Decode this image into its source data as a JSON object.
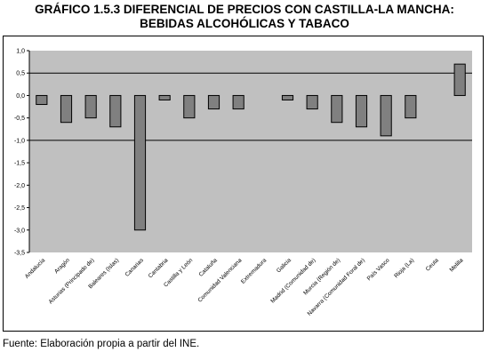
{
  "title_line1": "GRÁFICO 1.5.3 DIFERENCIAL DE PRECIOS CON CASTILLA-LA MANCHA:",
  "title_line2": "BEBIDAS ALCOHÓLICAS Y TABACO",
  "source": "Fuente: Elaboración propia a partir del INE.",
  "chart_data": {
    "type": "bar",
    "categories": [
      "Andalucía",
      "Aragón",
      "Asturias (Principado de)",
      "Baleares (Islas)",
      "Canarias",
      "Cantabria",
      "Castilla y León",
      "Cataluña",
      "Comunidad Valenciana",
      "Extremadura",
      "Galicia",
      "Madrid (Comunidad de)",
      "Murcia (Región de)",
      "Navarra (Comunidad Foral de)",
      "País Vasco",
      "Rioja (La)",
      "Ceuta",
      "Melilla"
    ],
    "values": [
      -0.2,
      -0.6,
      -0.5,
      -0.7,
      -3.0,
      -0.1,
      -0.5,
      -0.3,
      -0.3,
      0.0,
      -0.1,
      -0.3,
      -0.6,
      -0.7,
      -0.9,
      -0.5,
      0.0,
      0.7
    ],
    "ylim": [
      -3.5,
      1.0
    ],
    "yticks": [
      "1,0",
      "0,5",
      "0,0",
      "-0,5",
      "-1,0",
      "-1,5",
      "-2,0",
      "-2,5",
      "-3,0",
      "-3,5"
    ],
    "gridlines": [
      0.5,
      -1.0
    ],
    "plot_background": "#c0c0c0",
    "bar_color": "#808080",
    "grid": true,
    "legend": "none"
  }
}
